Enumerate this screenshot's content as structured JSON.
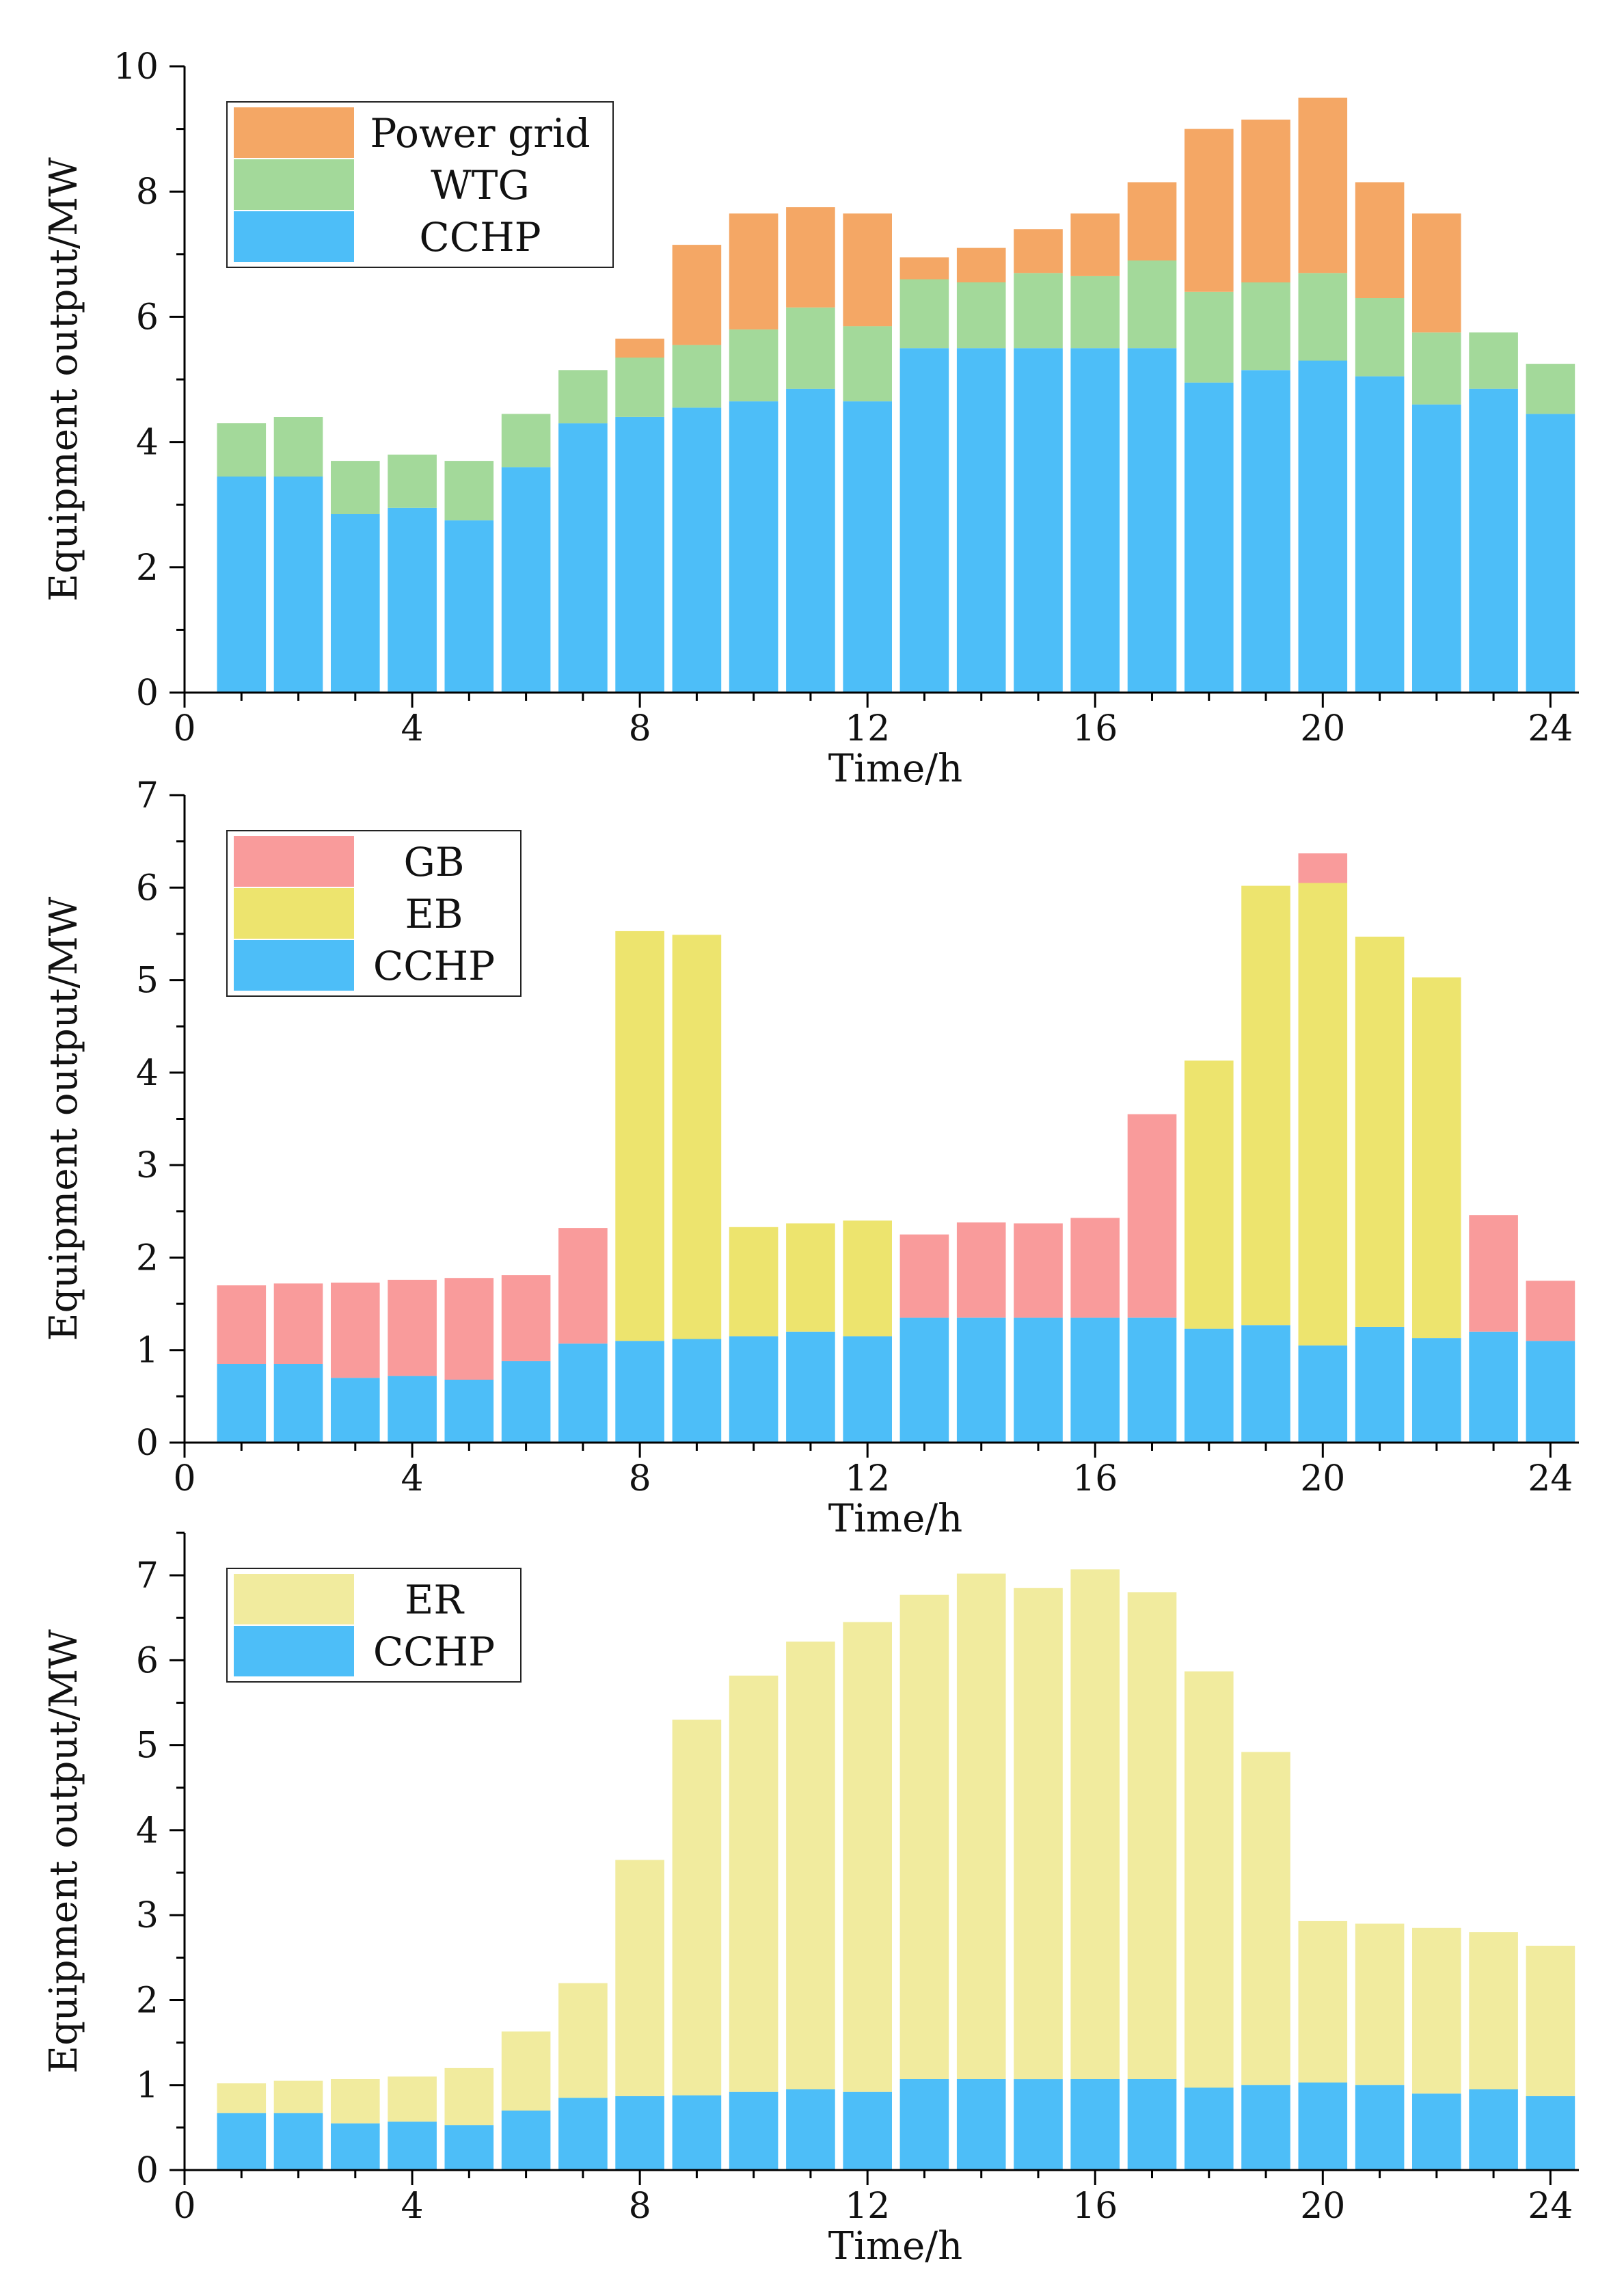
{
  "chart_data": [
    {
      "type": "bar",
      "stacked": true,
      "title": "",
      "xlabel": "Time/h",
      "ylabel": "Equipment output/MW",
      "xlim": [
        0,
        24.5
      ],
      "ylim": [
        0,
        10
      ],
      "xticks": [
        0,
        4,
        8,
        12,
        16,
        20,
        24
      ],
      "yticks": [
        0,
        2,
        4,
        6,
        8,
        10
      ],
      "x": [
        1,
        2,
        3,
        4,
        5,
        6,
        7,
        8,
        9,
        10,
        11,
        12,
        13,
        14,
        15,
        16,
        17,
        18,
        19,
        20,
        21,
        22,
        23,
        24
      ],
      "series": [
        {
          "name": "CCHP",
          "color": "#4DBEF8",
          "values": [
            3.45,
            3.45,
            2.85,
            2.95,
            2.75,
            3.6,
            4.3,
            4.4,
            4.55,
            4.65,
            4.85,
            4.65,
            5.5,
            5.5,
            5.5,
            5.5,
            5.5,
            4.95,
            5.15,
            5.3,
            5.05,
            4.6,
            4.85,
            4.45
          ]
        },
        {
          "name": "WTG",
          "color": "#A3D99A",
          "values": [
            0.85,
            0.95,
            0.85,
            0.85,
            0.95,
            0.85,
            0.85,
            0.95,
            1.0,
            1.15,
            1.3,
            1.2,
            1.1,
            1.05,
            1.2,
            1.15,
            1.4,
            1.45,
            1.4,
            1.4,
            1.25,
            1.15,
            0.9,
            0.8
          ]
        },
        {
          "name": "Power grid",
          "color": "#F4A765",
          "values": [
            0,
            0,
            0,
            0,
            0,
            0,
            0,
            0.3,
            1.6,
            1.85,
            1.6,
            1.8,
            0.35,
            0.55,
            0.7,
            1.0,
            1.25,
            2.6,
            2.6,
            2.8,
            1.85,
            1.9,
            0,
            0
          ]
        }
      ],
      "legend_order": [
        "Power grid",
        "WTG",
        "CCHP"
      ],
      "legend": "top-left"
    },
    {
      "type": "bar",
      "stacked": true,
      "title": "",
      "xlabel": "Time/h",
      "ylabel": "Equipment output/MW",
      "xlim": [
        0,
        24.5
      ],
      "ylim": [
        0,
        7
      ],
      "xticks": [
        0,
        4,
        8,
        12,
        16,
        20,
        24
      ],
      "yticks": [
        0,
        1,
        2,
        3,
        4,
        5,
        6,
        7
      ],
      "x": [
        1,
        2,
        3,
        4,
        5,
        6,
        7,
        8,
        9,
        10,
        11,
        12,
        13,
        14,
        15,
        16,
        17,
        18,
        19,
        20,
        21,
        22,
        23,
        24
      ],
      "series": [
        {
          "name": "CCHP",
          "color": "#4DBEF8",
          "values": [
            0.85,
            0.85,
            0.7,
            0.72,
            0.68,
            0.88,
            1.07,
            1.1,
            1.12,
            1.15,
            1.2,
            1.15,
            1.35,
            1.35,
            1.35,
            1.35,
            1.35,
            1.23,
            1.27,
            1.05,
            1.25,
            1.13,
            1.2,
            1.1
          ]
        },
        {
          "name": "EB",
          "color": "#EDE46E",
          "values": [
            0,
            0,
            0,
            0,
            0,
            0,
            0,
            4.43,
            4.37,
            1.18,
            1.17,
            1.25,
            0,
            0,
            0,
            0,
            0,
            2.9,
            4.75,
            5.0,
            4.22,
            3.9,
            0,
            0
          ]
        },
        {
          "name": "GB",
          "color": "#F99B9B",
          "values": [
            0.85,
            0.87,
            1.03,
            1.04,
            1.1,
            0.93,
            1.25,
            0,
            0,
            0,
            0,
            0,
            0.9,
            1.03,
            1.02,
            1.08,
            2.2,
            0,
            0,
            0.32,
            0,
            0,
            1.26,
            0.65
          ]
        }
      ],
      "legend_order": [
        "GB",
        "EB",
        "CCHP"
      ],
      "legend": "top-left"
    },
    {
      "type": "bar",
      "stacked": true,
      "title": "",
      "xlabel": "Time/h",
      "ylabel": "Equipment output/MW",
      "xlim": [
        0,
        24.5
      ],
      "ylim": [
        0,
        7.5
      ],
      "xticks": [
        0,
        4,
        8,
        12,
        16,
        20,
        24
      ],
      "yticks": [
        0,
        1,
        2,
        3,
        4,
        5,
        6,
        7
      ],
      "x": [
        1,
        2,
        3,
        4,
        5,
        6,
        7,
        8,
        9,
        10,
        11,
        12,
        13,
        14,
        15,
        16,
        17,
        18,
        19,
        20,
        21,
        22,
        23,
        24
      ],
      "series": [
        {
          "name": "CCHP",
          "color": "#4DBEF8",
          "values": [
            0.67,
            0.67,
            0.55,
            0.57,
            0.53,
            0.7,
            0.85,
            0.87,
            0.88,
            0.92,
            0.95,
            0.92,
            1.07,
            1.07,
            1.07,
            1.07,
            1.07,
            0.97,
            1.0,
            1.03,
            1.0,
            0.9,
            0.95,
            0.87
          ]
        },
        {
          "name": "ER",
          "color": "#F1EB9E",
          "values": [
            0.35,
            0.38,
            0.52,
            0.53,
            0.67,
            0.93,
            1.35,
            2.78,
            4.42,
            4.9,
            5.27,
            5.53,
            5.7,
            5.95,
            5.78,
            6.0,
            5.73,
            4.9,
            3.92,
            1.9,
            1.9,
            1.95,
            1.85,
            1.77
          ]
        }
      ],
      "legend_order": [
        "ER",
        "CCHP"
      ],
      "legend": "top-left"
    }
  ]
}
